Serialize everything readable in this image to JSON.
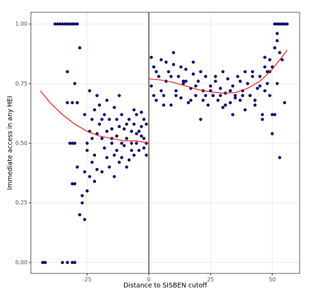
{
  "chart_data": {
    "type": "scatter",
    "x_label": "Distance to SISBEN cutoff",
    "y_label": "Immediate access in any HEI",
    "xlim": [
      -47.8,
      61.1
    ],
    "ylim": [
      -0.046,
      1.049
    ],
    "xticks": [
      -25,
      0,
      25,
      50
    ],
    "yticks": [
      {
        "value": 0,
        "label": "0.00"
      },
      {
        "value": 0.25,
        "label": "0.25"
      },
      {
        "value": 0.5,
        "label": "0.50"
      },
      {
        "value": 0.75,
        "label": "0.75"
      },
      {
        "value": 1,
        "label": "1.00"
      }
    ],
    "grid": true,
    "vline": 0,
    "points": {
      "color": "#0d0d6b",
      "x": [
        -38,
        -37,
        -36,
        -35,
        -34,
        -33,
        -32,
        -31,
        -30,
        -29,
        -43,
        -42,
        -35,
        -33,
        -31,
        -30,
        -33,
        -30,
        -28,
        -29,
        -31,
        -33,
        -30,
        -31,
        -32,
        -30,
        -31,
        -29,
        -28,
        -27,
        -26,
        -27,
        -25,
        -26,
        -24,
        -23,
        -22,
        -21,
        -25,
        -24,
        -23,
        -22,
        -21,
        -20,
        -19,
        -18,
        -17,
        -16,
        -15,
        -14,
        -13,
        -12,
        -11,
        -10,
        -9,
        -8,
        -7,
        -6,
        -5,
        -4,
        -3,
        -2,
        -1,
        -18,
        -16,
        -14,
        -12,
        -10,
        -8,
        -6,
        -4,
        -2,
        -1,
        -20,
        -17,
        -15,
        -13,
        -11,
        -9,
        -7,
        -5,
        -3,
        -26,
        -25,
        -23,
        -21,
        -19,
        -17,
        -15,
        -13,
        -11,
        -9,
        -7,
        -5,
        -3,
        -1,
        -24,
        -22,
        -19,
        -14,
        -12,
        -6,
        -2,
        1,
        2,
        3,
        4,
        5,
        6,
        7,
        8,
        9,
        10,
        11,
        12,
        13,
        14,
        15,
        16,
        17,
        18,
        19,
        20,
        21,
        22,
        23,
        24,
        25,
        26,
        27,
        28,
        29,
        30,
        31,
        32,
        33,
        34,
        35,
        36,
        37,
        38,
        39,
        40,
        41,
        42,
        43,
        44,
        45,
        46,
        47,
        48,
        49,
        50,
        1,
        3,
        5,
        7,
        9,
        11,
        13,
        15,
        17,
        19,
        21,
        23,
        25,
        27,
        29,
        31,
        33,
        35,
        37,
        39,
        41,
        43,
        45,
        47,
        49,
        2,
        6,
        10,
        14,
        18,
        22,
        26,
        30,
        34,
        38,
        42,
        46,
        51,
        52,
        53,
        54,
        55,
        56,
        52,
        53,
        51,
        54,
        50,
        52,
        49,
        51,
        53,
        55,
        48,
        50,
        52,
        47
      ],
      "y": [
        1,
        1,
        1,
        1,
        1,
        1,
        1,
        1,
        1,
        1,
        0,
        0,
        0,
        0,
        0,
        0,
        0.8,
        0.75,
        0.9,
        0.67,
        0.67,
        0.67,
        0.5,
        0.5,
        0.5,
        0.33,
        0.33,
        0.4,
        0.2,
        0.25,
        0.18,
        0.28,
        0.3,
        0.38,
        0.36,
        0.42,
        0.45,
        0.39,
        0.5,
        0.55,
        0.6,
        0.64,
        0.7,
        0.58,
        0.52,
        0.48,
        0.55,
        0.6,
        0.5,
        0.45,
        0.53,
        0.57,
        0.62,
        0.49,
        0.52,
        0.43,
        0.55,
        0.58,
        0.5,
        0.47,
        0.53,
        0.6,
        0.5,
        0.62,
        0.4,
        0.36,
        0.42,
        0.56,
        0.6,
        0.64,
        0.55,
        0.48,
        0.45,
        0.66,
        0.68,
        0.56,
        0.47,
        0.5,
        0.58,
        0.47,
        0.62,
        0.57,
        0.62,
        0.47,
        0.52,
        0.54,
        0.6,
        0.44,
        0.52,
        0.6,
        0.44,
        0.4,
        0.5,
        0.54,
        0.63,
        0.58,
        0.72,
        0.34,
        0.38,
        0.65,
        0.7,
        0.45,
        0.52,
        0.74,
        0.82,
        0.68,
        0.78,
        0.85,
        0.7,
        0.76,
        0.8,
        0.66,
        0.83,
        0.72,
        0.78,
        0.69,
        0.75,
        0.81,
        0.67,
        0.73,
        0.79,
        0.7,
        0.76,
        0.6,
        0.72,
        0.78,
        0.66,
        0.74,
        0.7,
        0.76,
        0.68,
        0.73,
        0.65,
        0.71,
        0.77,
        0.67,
        0.74,
        0.7,
        0.78,
        0.68,
        0.72,
        0.64,
        0.75,
        0.7,
        0.8,
        0.66,
        0.73,
        0.78,
        0.62,
        0.82,
        0.75,
        0.85,
        0.62,
        0.86,
        0.8,
        0.72,
        0.84,
        0.78,
        0.7,
        0.82,
        0.76,
        0.68,
        0.74,
        0.8,
        0.7,
        0.72,
        0.78,
        0.7,
        0.66,
        0.72,
        0.69,
        0.76,
        0.8,
        0.7,
        0.68,
        0.74,
        0.72,
        0.8,
        0.7,
        0.66,
        0.88,
        0.76,
        0.84,
        0.68,
        0.7,
        0.8,
        0.62,
        0.7,
        0.78,
        0.6,
        1,
        1,
        1,
        1,
        1,
        1,
        0.93,
        0.88,
        0.9,
        0.85,
        0.82,
        0.75,
        0.7,
        0.62,
        0.44,
        0.67,
        0.8,
        0.54,
        0.96,
        0.86
      ]
    },
    "fits": [
      {
        "color": "#e31a1c",
        "x": [
          -44,
          -40,
          -35,
          -30,
          -25,
          -20,
          -15,
          -10,
          -5,
          0
        ],
        "y": [
          0.72,
          0.67,
          0.62,
          0.58,
          0.55,
          0.53,
          0.52,
          0.51,
          0.51,
          0.5
        ]
      },
      {
        "color": "#e31a1c",
        "x": [
          0,
          5,
          10,
          15,
          20,
          25,
          30,
          35,
          40,
          45,
          50,
          56
        ],
        "y": [
          0.77,
          0.765,
          0.755,
          0.74,
          0.725,
          0.715,
          0.71,
          0.712,
          0.73,
          0.76,
          0.81,
          0.89
        ]
      }
    ]
  }
}
